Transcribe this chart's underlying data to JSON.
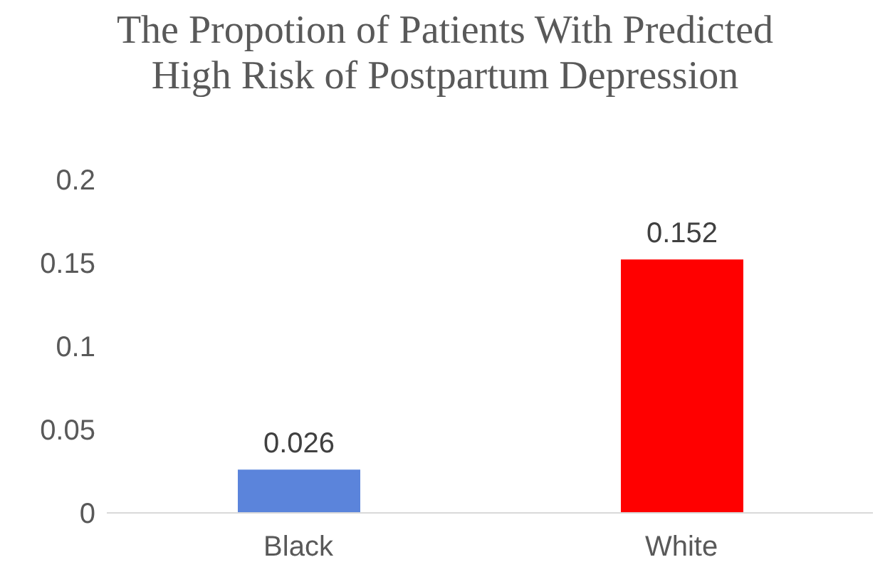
{
  "chart_data": {
    "type": "bar",
    "title": "The Propotion of Patients With Predicted High Risk of Postpartum Depression",
    "categories": [
      "Black",
      "White"
    ],
    "values": [
      0.026,
      0.152
    ],
    "colors": [
      "#5b84db",
      "#ff0000"
    ],
    "ylim": [
      0,
      0.2
    ],
    "yticks": [
      0,
      0.05,
      0.1,
      0.15,
      0.2
    ],
    "grid": false,
    "data_labels": true
  }
}
